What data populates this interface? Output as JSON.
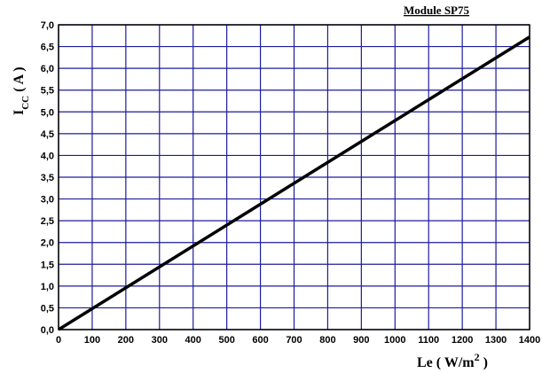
{
  "chart_data": {
    "type": "line",
    "title": "Module SP75",
    "xlabel": [
      "Le ( W/m",
      "2",
      " )"
    ],
    "ylabel": [
      "I",
      "CC",
      " ( A )"
    ],
    "x": [
      0,
      1400
    ],
    "series": [
      {
        "name": "Module SP75",
        "color": "#000000",
        "values": [
          0,
          6.72
        ]
      }
    ],
    "xlim": [
      0,
      1400
    ],
    "xticks": [
      0,
      100,
      200,
      300,
      400,
      500,
      600,
      700,
      800,
      900,
      1000,
      1100,
      1200,
      1300,
      1400
    ],
    "ylim": [
      0,
      7
    ],
    "yticks": [
      {
        "value": 0,
        "label": "0,0"
      },
      {
        "value": 0.5,
        "label": "0,5"
      },
      {
        "value": 1,
        "label": "1,0"
      },
      {
        "value": 1.5,
        "label": "1,5"
      },
      {
        "value": 2,
        "label": "2,0"
      },
      {
        "value": 2.5,
        "label": "2,5"
      },
      {
        "value": 3,
        "label": "3,0"
      },
      {
        "value": 3.5,
        "label": "3,5"
      },
      {
        "value": 4,
        "label": "4,0"
      },
      {
        "value": 4.5,
        "label": "4,5"
      },
      {
        "value": 5,
        "label": "5,0"
      },
      {
        "value": 5.5,
        "label": "5,5"
      },
      {
        "value": 6,
        "label": "6,0"
      },
      {
        "value": 6.5,
        "label": "6,5"
      },
      {
        "value": 7,
        "label": "7,0"
      }
    ],
    "grid": true,
    "grid_color": "#1c1c9c"
  }
}
